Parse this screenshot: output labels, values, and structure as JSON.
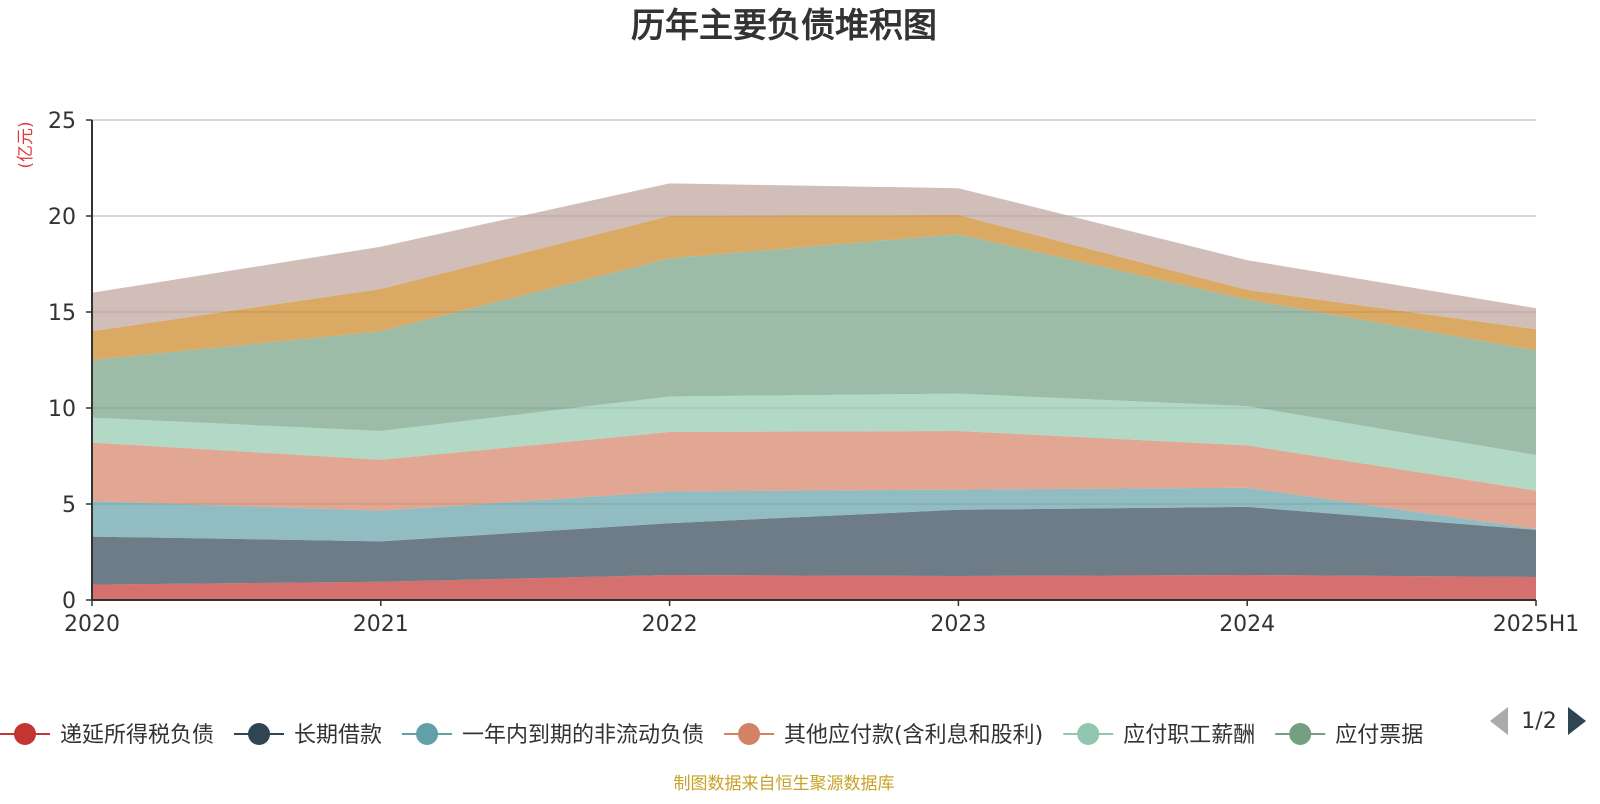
{
  "chart_data": {
    "type": "area",
    "stacked": true,
    "title": "历年主要负债堆积图",
    "ylabel": "(亿元)",
    "xlabel": "",
    "categories": [
      "2020",
      "2021",
      "2022",
      "2023",
      "2024",
      "2025H1"
    ],
    "ylim": [
      0,
      25
    ],
    "yticks": [
      0,
      5,
      10,
      15,
      20,
      25
    ],
    "grid": true,
    "legend_position": "bottom",
    "series": [
      {
        "name": "递延所得税负债",
        "color": "#c23531",
        "values": [
          0.8,
          0.95,
          1.3,
          1.25,
          1.3,
          1.2
        ]
      },
      {
        "name": "长期借款",
        "color": "#2f4554",
        "values": [
          2.5,
          2.1,
          2.7,
          3.45,
          3.55,
          2.45
        ]
      },
      {
        "name": "一年内到期的非流动负债",
        "color": "#61a0a8",
        "values": [
          1.85,
          1.6,
          1.65,
          1.05,
          1.0,
          0.05
        ]
      },
      {
        "name": "其他应付款(含利息和股利)",
        "color": "#d48265",
        "values": [
          3.05,
          2.65,
          3.1,
          3.05,
          2.2,
          2.0
        ]
      },
      {
        "name": "应付职工薪酬",
        "color": "#91c7ae",
        "values": [
          1.3,
          1.5,
          1.85,
          1.95,
          2.05,
          1.85
        ]
      },
      {
        "name": "应付票据",
        "color": "#749f83",
        "values": [
          3.0,
          5.2,
          7.2,
          8.3,
          5.55,
          5.45
        ]
      },
      {
        "name": "",
        "color": "#ca8622",
        "values": [
          1.5,
          2.2,
          2.2,
          1.0,
          0.5,
          1.1
        ]
      },
      {
        "name": "",
        "color": "#bda29a",
        "values": [
          2.0,
          2.2,
          1.7,
          1.4,
          1.55,
          1.1
        ]
      }
    ]
  },
  "legend": {
    "visible_items": [
      {
        "label": "递延所得税负债",
        "color": "#c23531"
      },
      {
        "label": "长期借款",
        "color": "#2f4554"
      },
      {
        "label": "一年内到期的非流动负债",
        "color": "#61a0a8"
      },
      {
        "label": "其他应付款(含利息和股利)",
        "color": "#d48265"
      },
      {
        "label": "应付职工薪酬",
        "color": "#91c7ae"
      },
      {
        "label": "应付票据",
        "color": "#749f83"
      }
    ],
    "page_indicator": "1/2"
  },
  "footer": {
    "source_text": "制图数据来自恒生聚源数据库",
    "source_color": "#c9a227"
  }
}
